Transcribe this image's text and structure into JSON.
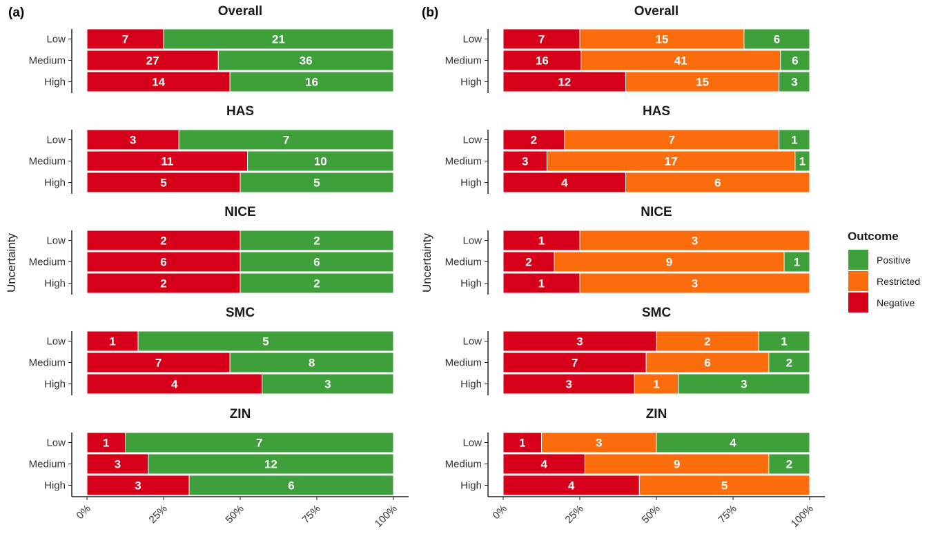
{
  "chart_data": [
    {
      "panel": "(a)",
      "type": "bar",
      "orientation": "horizontal",
      "stacked": "percent",
      "categories": [
        "Low",
        "Medium",
        "High"
      ],
      "xticks": [
        "0%",
        "25%",
        "50%",
        "75%",
        "100%"
      ],
      "ylabel": "Uncertainty",
      "facets": [
        {
          "title": "Overall",
          "series": [
            {
              "name": "Negative",
              "values": [
                7,
                27,
                14
              ]
            },
            {
              "name": "Positive",
              "values": [
                21,
                36,
                16
              ]
            }
          ]
        },
        {
          "title": "HAS",
          "series": [
            {
              "name": "Negative",
              "values": [
                3,
                11,
                5
              ]
            },
            {
              "name": "Positive",
              "values": [
                7,
                10,
                5
              ]
            }
          ]
        },
        {
          "title": "NICE",
          "series": [
            {
              "name": "Negative",
              "values": [
                2,
                6,
                2
              ]
            },
            {
              "name": "Positive",
              "values": [
                2,
                6,
                2
              ]
            }
          ]
        },
        {
          "title": "SMC",
          "series": [
            {
              "name": "Negative",
              "values": [
                1,
                7,
                4
              ]
            },
            {
              "name": "Positive",
              "values": [
                5,
                8,
                3
              ]
            }
          ]
        },
        {
          "title": "ZIN",
          "series": [
            {
              "name": "Negative",
              "values": [
                1,
                3,
                3
              ]
            },
            {
              "name": "Positive",
              "values": [
                7,
                12,
                6
              ]
            }
          ]
        }
      ]
    },
    {
      "panel": "(b)",
      "type": "bar",
      "orientation": "horizontal",
      "stacked": "percent",
      "categories": [
        "Low",
        "Medium",
        "High"
      ],
      "xticks": [
        "0%",
        "25%",
        "50%",
        "75%",
        "100%"
      ],
      "ylabel": "Uncertainty",
      "facets": [
        {
          "title": "Overall",
          "series": [
            {
              "name": "Negative",
              "values": [
                7,
                16,
                12
              ]
            },
            {
              "name": "Restricted",
              "values": [
                15,
                41,
                15
              ]
            },
            {
              "name": "Positive",
              "values": [
                6,
                6,
                3
              ]
            }
          ]
        },
        {
          "title": "HAS",
          "series": [
            {
              "name": "Negative",
              "values": [
                2,
                3,
                4
              ]
            },
            {
              "name": "Restricted",
              "values": [
                7,
                17,
                6
              ]
            },
            {
              "name": "Positive",
              "values": [
                1,
                1,
                0
              ]
            }
          ]
        },
        {
          "title": "NICE",
          "series": [
            {
              "name": "Negative",
              "values": [
                1,
                2,
                1
              ]
            },
            {
              "name": "Restricted",
              "values": [
                3,
                9,
                3
              ]
            },
            {
              "name": "Positive",
              "values": [
                0,
                1,
                0
              ]
            }
          ]
        },
        {
          "title": "SMC",
          "series": [
            {
              "name": "Negative",
              "values": [
                3,
                7,
                3
              ]
            },
            {
              "name": "Restricted",
              "values": [
                2,
                6,
                1
              ]
            },
            {
              "name": "Positive",
              "values": [
                1,
                2,
                3
              ]
            }
          ]
        },
        {
          "title": "ZIN",
          "series": [
            {
              "name": "Negative",
              "values": [
                1,
                4,
                4
              ]
            },
            {
              "name": "Restricted",
              "values": [
                3,
                9,
                5
              ]
            },
            {
              "name": "Positive",
              "values": [
                4,
                2,
                0
              ]
            }
          ]
        }
      ]
    }
  ],
  "legend": {
    "title": "Outcome",
    "placement": "right",
    "items": [
      {
        "label": "Positive",
        "color": "#3f9f3a"
      },
      {
        "label": "Restricted",
        "color": "#fb6c0c"
      },
      {
        "label": "Negative",
        "color": "#d7001a"
      }
    ]
  },
  "colors": {
    "Positive": "#3f9f3a",
    "Restricted": "#fb6c0c",
    "Negative": "#d7001a"
  }
}
